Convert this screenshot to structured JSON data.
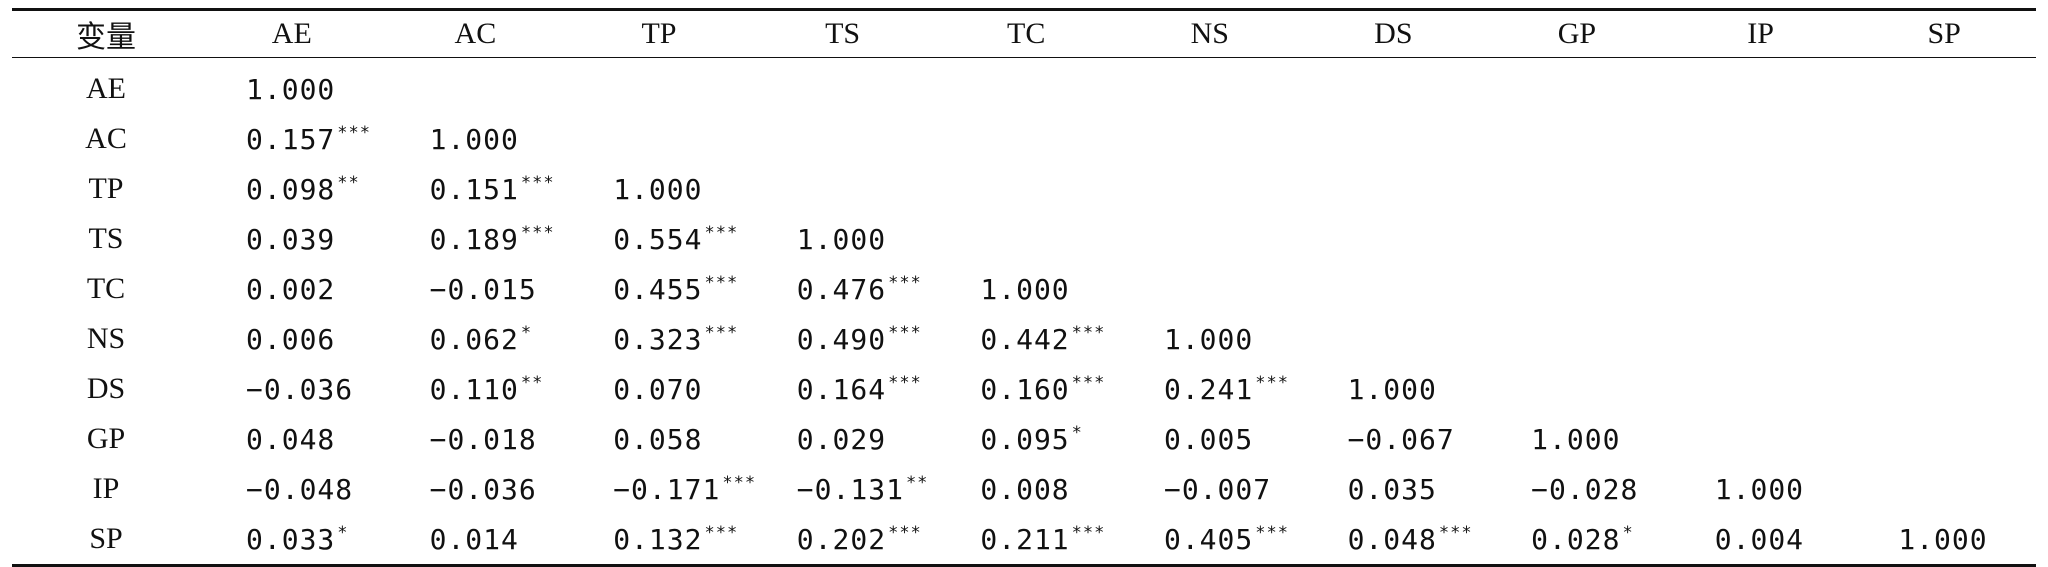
{
  "table": {
    "headers": [
      "变量",
      "AE",
      "AC",
      "TP",
      "TS",
      "TC",
      "NS",
      "DS",
      "GP",
      "IP",
      "SP"
    ],
    "rows": [
      {
        "label": "AE",
        "cells": [
          {
            "v": "1.000",
            "s": ""
          }
        ]
      },
      {
        "label": "AC",
        "cells": [
          {
            "v": "0.157",
            "s": "***"
          },
          {
            "v": "1.000",
            "s": ""
          }
        ]
      },
      {
        "label": "TP",
        "cells": [
          {
            "v": "0.098",
            "s": "**"
          },
          {
            "v": "0.151",
            "s": "***"
          },
          {
            "v": "1.000",
            "s": ""
          }
        ]
      },
      {
        "label": "TS",
        "cells": [
          {
            "v": "0.039",
            "s": ""
          },
          {
            "v": "0.189",
            "s": "***"
          },
          {
            "v": "0.554",
            "s": "***"
          },
          {
            "v": "1.000",
            "s": ""
          }
        ]
      },
      {
        "label": "TC",
        "cells": [
          {
            "v": "0.002",
            "s": ""
          },
          {
            "v": "−0.015",
            "s": ""
          },
          {
            "v": "0.455",
            "s": "***"
          },
          {
            "v": "0.476",
            "s": "***"
          },
          {
            "v": "1.000",
            "s": ""
          }
        ]
      },
      {
        "label": "NS",
        "cells": [
          {
            "v": "0.006",
            "s": ""
          },
          {
            "v": "0.062",
            "s": "*"
          },
          {
            "v": "0.323",
            "s": "***"
          },
          {
            "v": "0.490",
            "s": "***"
          },
          {
            "v": "0.442",
            "s": "***"
          },
          {
            "v": "1.000",
            "s": ""
          }
        ]
      },
      {
        "label": "DS",
        "cells": [
          {
            "v": "−0.036",
            "s": ""
          },
          {
            "v": "0.110",
            "s": "**"
          },
          {
            "v": "0.070",
            "s": ""
          },
          {
            "v": "0.164",
            "s": "***"
          },
          {
            "v": "0.160",
            "s": "***"
          },
          {
            "v": "0.241",
            "s": "***"
          },
          {
            "v": "1.000",
            "s": ""
          }
        ]
      },
      {
        "label": "GP",
        "cells": [
          {
            "v": "0.048",
            "s": ""
          },
          {
            "v": "−0.018",
            "s": ""
          },
          {
            "v": "0.058",
            "s": ""
          },
          {
            "v": "0.029",
            "s": ""
          },
          {
            "v": "0.095",
            "s": "*"
          },
          {
            "v": "0.005",
            "s": ""
          },
          {
            "v": "−0.067",
            "s": ""
          },
          {
            "v": "1.000",
            "s": ""
          }
        ]
      },
      {
        "label": "IP",
        "cells": [
          {
            "v": "−0.048",
            "s": ""
          },
          {
            "v": "−0.036",
            "s": ""
          },
          {
            "v": "−0.171",
            "s": "***"
          },
          {
            "v": "−0.131",
            "s": "**"
          },
          {
            "v": "0.008",
            "s": ""
          },
          {
            "v": "−0.007",
            "s": ""
          },
          {
            "v": "0.035",
            "s": ""
          },
          {
            "v": "−0.028",
            "s": ""
          },
          {
            "v": "1.000",
            "s": ""
          }
        ]
      },
      {
        "label": "SP",
        "cells": [
          {
            "v": "0.033",
            "s": "*"
          },
          {
            "v": "0.014",
            "s": ""
          },
          {
            "v": "0.132",
            "s": "***"
          },
          {
            "v": "0.202",
            "s": "***"
          },
          {
            "v": "0.211",
            "s": "***"
          },
          {
            "v": "0.405",
            "s": "***"
          },
          {
            "v": "0.048",
            "s": "***"
          },
          {
            "v": "0.028",
            "s": "*"
          },
          {
            "v": "0.004",
            "s": ""
          },
          {
            "v": "1.000",
            "s": ""
          }
        ]
      }
    ]
  }
}
